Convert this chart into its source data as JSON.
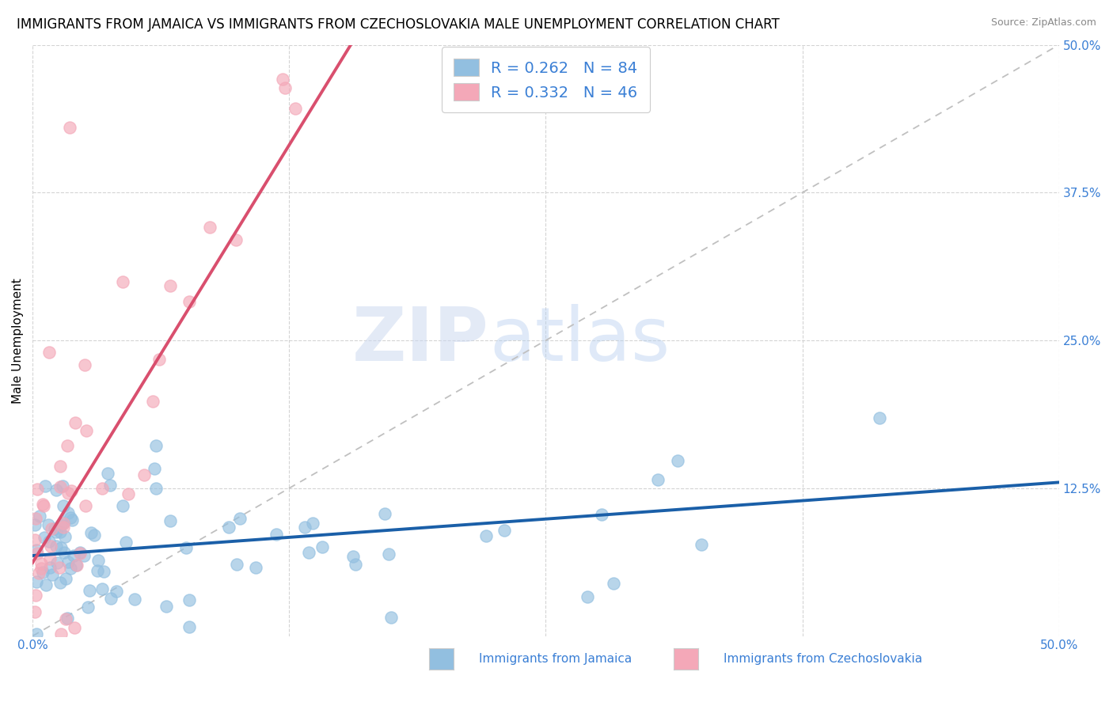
{
  "title": "IMMIGRANTS FROM JAMAICA VS IMMIGRANTS FROM CZECHOSLOVAKIA MALE UNEMPLOYMENT CORRELATION CHART",
  "source": "Source: ZipAtlas.com",
  "ylabel": "Male Unemployment",
  "xlim": [
    0.0,
    0.5
  ],
  "ylim": [
    0.0,
    0.5
  ],
  "ytick_vals": [
    0.125,
    0.25,
    0.375,
    0.5
  ],
  "ytick_labels": [
    "12.5%",
    "25.0%",
    "37.5%",
    "50.0%"
  ],
  "xtick_vals": [
    0.0,
    0.125,
    0.25,
    0.375,
    0.5
  ],
  "xtick_labels": [
    "0.0%",
    "",
    "",
    "",
    "50.0%"
  ],
  "watermark_zip": "ZIP",
  "watermark_atlas": "atlas",
  "legend_label1": "Immigrants from Jamaica",
  "legend_label2": "Immigrants from Czechoslovakia",
  "series1_color": "#92bfe0",
  "series2_color": "#f4a8b8",
  "series1_line_color": "#1a5fa8",
  "series2_line_color": "#d94f6e",
  "dashed_line_color": "#c0c0c0",
  "R1": 0.262,
  "N1": 84,
  "R2": 0.332,
  "N2": 46,
  "legend_text_color": "#3a7fd5",
  "title_fontsize": 12,
  "ylabel_fontsize": 11,
  "tick_fontsize": 11,
  "background_color": "#ffffff",
  "series1_line_x": [
    0.0,
    0.5
  ],
  "series1_line_y": [
    0.068,
    0.13
  ],
  "series2_line_x": [
    0.0,
    0.155
  ],
  "series2_line_y": [
    0.062,
    0.5
  ],
  "dash_line_x": [
    0.0,
    0.5
  ],
  "dash_line_y": [
    0.0,
    0.5
  ]
}
